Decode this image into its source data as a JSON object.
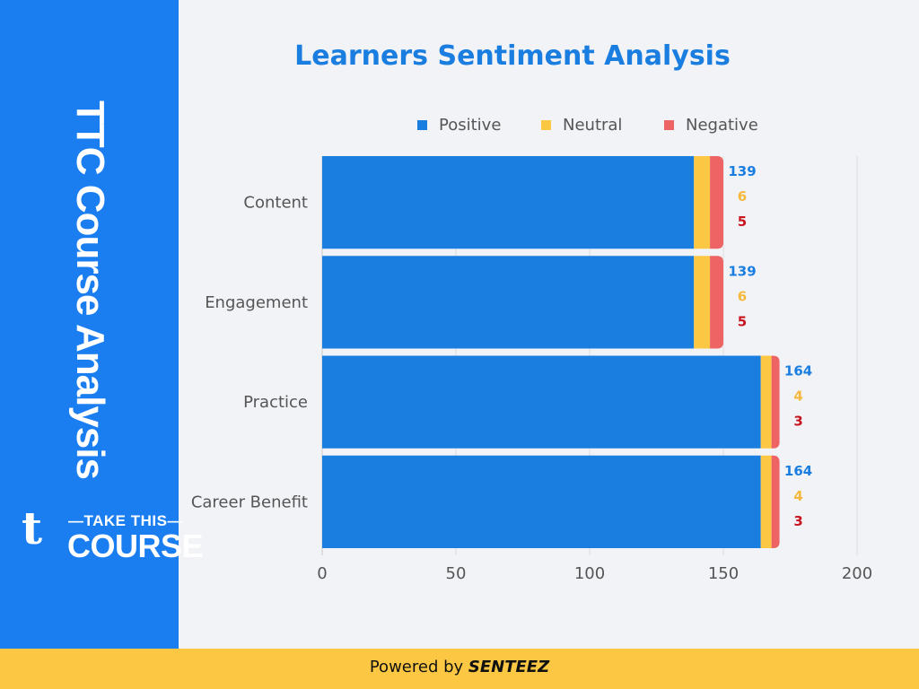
{
  "sidebar": {
    "title": "TTC Course Analysis",
    "logo": {
      "mark": "t",
      "line1": "—TAKE THIS—",
      "line2": "COURSE"
    }
  },
  "footer": {
    "prefix": "Powered by ",
    "brand": "SENTEEZ"
  },
  "colors": {
    "sidebar": "#1a7ef0",
    "positive": "#1a7ee0",
    "neutral": "#fcc844",
    "negative": "#ee6363",
    "label_positive": "#1a7ee0",
    "label_neutral": "#f5b83d",
    "label_negative": "#c8141e",
    "footer": "#fcc844"
  },
  "chart_data": {
    "type": "bar",
    "orientation": "horizontal",
    "stacked": true,
    "title": "Learners Sentiment Analysis",
    "categories": [
      "Content",
      "Engagement",
      "Practice",
      "Career Benefit"
    ],
    "series": [
      {
        "name": "Positive",
        "values": [
          139,
          139,
          164,
          164
        ]
      },
      {
        "name": "Neutral",
        "values": [
          6,
          6,
          4,
          4
        ]
      },
      {
        "name": "Negative",
        "values": [
          5,
          5,
          3,
          3
        ]
      }
    ],
    "xlim": [
      0,
      200
    ],
    "xticks": [
      "0",
      "50",
      "100",
      "150",
      "200"
    ],
    "grid": true,
    "legend": "top"
  }
}
